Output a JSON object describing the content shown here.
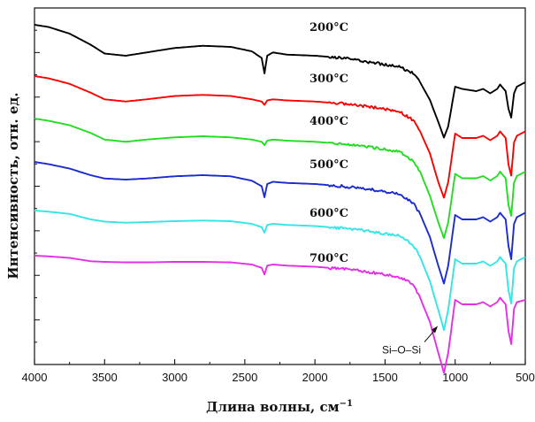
{
  "chart_data": {
    "type": "line",
    "title": "",
    "xlabel": "Длина волны, см",
    "xlabel_superscript": "−1",
    "ylabel": "Интенсивность, отн. ед.",
    "xlim": [
      4000,
      500
    ],
    "x_reversed": true,
    "x_ticks": [
      4000,
      3500,
      3000,
      2500,
      2000,
      1500,
      1000,
      500
    ],
    "y_ticks_labeled": false,
    "grid": false,
    "legend": "inline labels at right",
    "series": [
      {
        "name": "200°C",
        "color": "#000000",
        "x": [
          4000,
          3900,
          3750,
          3600,
          3500,
          3350,
          3200,
          3000,
          2800,
          2600,
          2450,
          2380,
          2360,
          2340,
          2300,
          2200,
          2000,
          1800,
          1600,
          1400,
          1300,
          1250,
          1180,
          1120,
          1080,
          1050,
          1000,
          950,
          850,
          800,
          750,
          700,
          680,
          640,
          620,
          600,
          580,
          560,
          500
        ],
        "y": [
          1.0,
          0.99,
          0.96,
          0.91,
          0.87,
          0.86,
          0.875,
          0.895,
          0.905,
          0.9,
          0.88,
          0.85,
          0.78,
          0.86,
          0.875,
          0.865,
          0.86,
          0.85,
          0.83,
          0.81,
          0.78,
          0.74,
          0.66,
          0.56,
          0.49,
          0.54,
          0.72,
          0.71,
          0.7,
          0.71,
          0.69,
          0.71,
          0.73,
          0.7,
          0.62,
          0.58,
          0.69,
          0.72,
          0.74
        ]
      },
      {
        "name": "300°C",
        "color": "#ff0000",
        "x": [
          4000,
          3900,
          3750,
          3600,
          3500,
          3350,
          3200,
          3000,
          2800,
          2600,
          2450,
          2380,
          2360,
          2340,
          2300,
          2200,
          2000,
          1800,
          1600,
          1400,
          1300,
          1250,
          1180,
          1120,
          1080,
          1050,
          1000,
          950,
          850,
          800,
          750,
          700,
          680,
          640,
          620,
          600,
          580,
          560,
          500
        ],
        "y": [
          1.0,
          0.99,
          0.965,
          0.925,
          0.895,
          0.885,
          0.895,
          0.91,
          0.915,
          0.91,
          0.895,
          0.885,
          0.87,
          0.89,
          0.895,
          0.89,
          0.885,
          0.875,
          0.86,
          0.84,
          0.8,
          0.75,
          0.65,
          0.52,
          0.45,
          0.52,
          0.74,
          0.72,
          0.72,
          0.73,
          0.71,
          0.73,
          0.75,
          0.72,
          0.6,
          0.55,
          0.7,
          0.73,
          0.75
        ]
      },
      {
        "name": "400°C",
        "color": "#22dd22",
        "x": [
          4000,
          3900,
          3750,
          3600,
          3500,
          3350,
          3200,
          3000,
          2800,
          2600,
          2450,
          2380,
          2360,
          2340,
          2300,
          2200,
          2000,
          1800,
          1600,
          1400,
          1300,
          1250,
          1180,
          1120,
          1080,
          1050,
          1000,
          950,
          850,
          800,
          750,
          700,
          680,
          640,
          620,
          600,
          580,
          560,
          500
        ],
        "y": [
          1.0,
          0.99,
          0.97,
          0.935,
          0.905,
          0.895,
          0.905,
          0.915,
          0.92,
          0.915,
          0.905,
          0.895,
          0.88,
          0.9,
          0.905,
          0.9,
          0.895,
          0.885,
          0.87,
          0.85,
          0.81,
          0.76,
          0.65,
          0.53,
          0.46,
          0.53,
          0.75,
          0.73,
          0.73,
          0.74,
          0.72,
          0.74,
          0.76,
          0.73,
          0.61,
          0.56,
          0.71,
          0.74,
          0.76
        ]
      },
      {
        "name": "500°C",
        "color": "#1a2bd0",
        "x": [
          4000,
          3900,
          3750,
          3600,
          3500,
          3350,
          3200,
          3000,
          2800,
          2600,
          2450,
          2380,
          2360,
          2340,
          2300,
          2200,
          2000,
          1800,
          1600,
          1400,
          1300,
          1250,
          1180,
          1120,
          1080,
          1050,
          1000,
          950,
          850,
          800,
          750,
          700,
          680,
          640,
          620,
          600,
          580,
          560,
          500
        ],
        "y": [
          1.0,
          0.99,
          0.97,
          0.94,
          0.925,
          0.92,
          0.925,
          0.935,
          0.94,
          0.935,
          0.915,
          0.89,
          0.84,
          0.9,
          0.91,
          0.905,
          0.9,
          0.89,
          0.875,
          0.855,
          0.815,
          0.765,
          0.66,
          0.53,
          0.45,
          0.53,
          0.76,
          0.74,
          0.74,
          0.75,
          0.73,
          0.75,
          0.77,
          0.74,
          0.62,
          0.56,
          0.72,
          0.75,
          0.77
        ]
      },
      {
        "name": "600°C",
        "color": "#33e6e6",
        "x": [
          4000,
          3900,
          3750,
          3600,
          3500,
          3350,
          3200,
          3000,
          2800,
          2600,
          2450,
          2380,
          2360,
          2340,
          2300,
          2200,
          2000,
          1800,
          1600,
          1400,
          1300,
          1250,
          1180,
          1120,
          1080,
          1050,
          1000,
          950,
          850,
          800,
          750,
          700,
          680,
          640,
          620,
          600,
          580,
          560,
          500
        ],
        "y": [
          1.0,
          0.995,
          0.985,
          0.96,
          0.95,
          0.945,
          0.948,
          0.952,
          0.955,
          0.952,
          0.94,
          0.925,
          0.9,
          0.935,
          0.94,
          0.935,
          0.93,
          0.92,
          0.905,
          0.885,
          0.845,
          0.79,
          0.68,
          0.55,
          0.46,
          0.55,
          0.78,
          0.76,
          0.76,
          0.77,
          0.75,
          0.77,
          0.79,
          0.76,
          0.64,
          0.58,
          0.74,
          0.77,
          0.79
        ]
      },
      {
        "name": "700°C",
        "color": "#e62ee6",
        "x": [
          4000,
          3900,
          3750,
          3600,
          3500,
          3350,
          3200,
          3000,
          2800,
          2600,
          2450,
          2380,
          2360,
          2340,
          2300,
          2200,
          2000,
          1800,
          1600,
          1400,
          1300,
          1250,
          1180,
          1120,
          1080,
          1050,
          1000,
          950,
          850,
          800,
          750,
          700,
          680,
          640,
          620,
          600,
          580,
          560,
          500
        ],
        "y": [
          1.0,
          0.997,
          0.99,
          0.975,
          0.972,
          0.97,
          0.97,
          0.972,
          0.972,
          0.97,
          0.96,
          0.945,
          0.915,
          0.955,
          0.96,
          0.955,
          0.95,
          0.94,
          0.925,
          0.905,
          0.87,
          0.81,
          0.7,
          0.56,
          0.47,
          0.56,
          0.8,
          0.78,
          0.78,
          0.79,
          0.77,
          0.79,
          0.81,
          0.78,
          0.66,
          0.6,
          0.76,
          0.79,
          0.8
        ]
      }
    ],
    "annotations": [
      {
        "text": "Si–O–Si",
        "target_x": 1080,
        "target_series": "700°C"
      }
    ]
  }
}
